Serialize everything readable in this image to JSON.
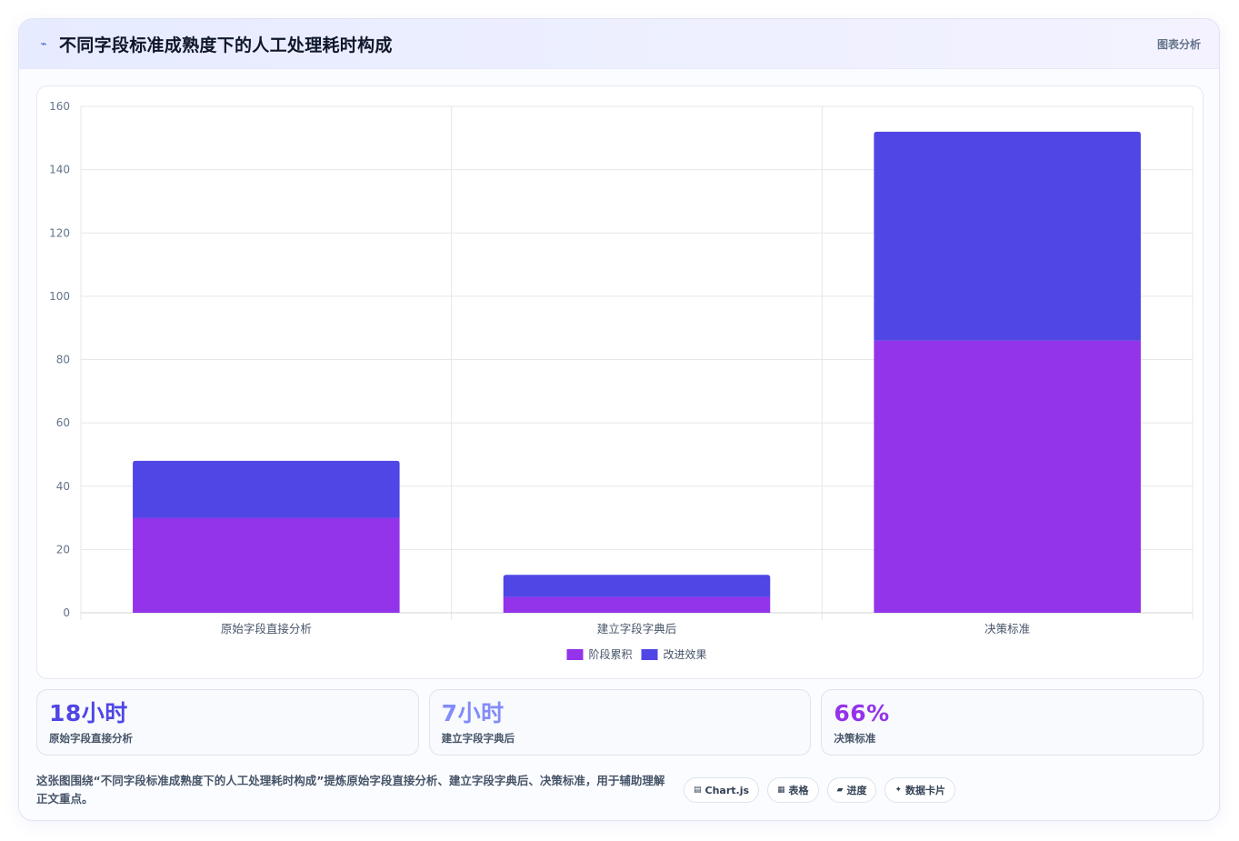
{
  "header": {
    "icon": "trend-line-icon",
    "title": "不同字段标准成熟度下的人工处理耗时构成",
    "tag": "图表分析"
  },
  "chart_data": {
    "type": "bar",
    "stacked": true,
    "categories": [
      "原始字段直接分析",
      "建立字段字典后",
      "决策标准"
    ],
    "series": [
      {
        "name": "阶段累积",
        "color": "#9333ea",
        "values": [
          30,
          5,
          86
        ]
      },
      {
        "name": "改进效果",
        "color": "#4f46e5",
        "values": [
          18,
          7,
          66
        ]
      }
    ],
    "ylim": [
      0,
      160
    ],
    "yticks": [
      0,
      20,
      40,
      60,
      80,
      100,
      120,
      140,
      160
    ],
    "grid": true,
    "legend": "bottom"
  },
  "stats": [
    {
      "value": "18小时",
      "label": "原始字段直接分析",
      "color": "#4f46e5"
    },
    {
      "value": "7小时",
      "label": "建立字段字典后",
      "color": "#818cf8"
    },
    {
      "value": "66%",
      "label": "决策标准",
      "color": "#9333ea"
    }
  ],
  "footer": {
    "description": "这张图围绕“不同字段标准成熟度下的人工处理耗时构成”提炼原始字段直接分析、建立字段字典后、决策标准，用于辅助理解正文重点。",
    "pills": [
      {
        "icon": "chart-icon",
        "glyph": "▤",
        "label": "Chart.js"
      },
      {
        "icon": "table-icon",
        "glyph": "▦",
        "label": "表格"
      },
      {
        "icon": "progress-icon",
        "glyph": "▰",
        "label": "进度"
      },
      {
        "icon": "sparkle-icon",
        "glyph": "✦",
        "label": "数据卡片"
      }
    ]
  }
}
